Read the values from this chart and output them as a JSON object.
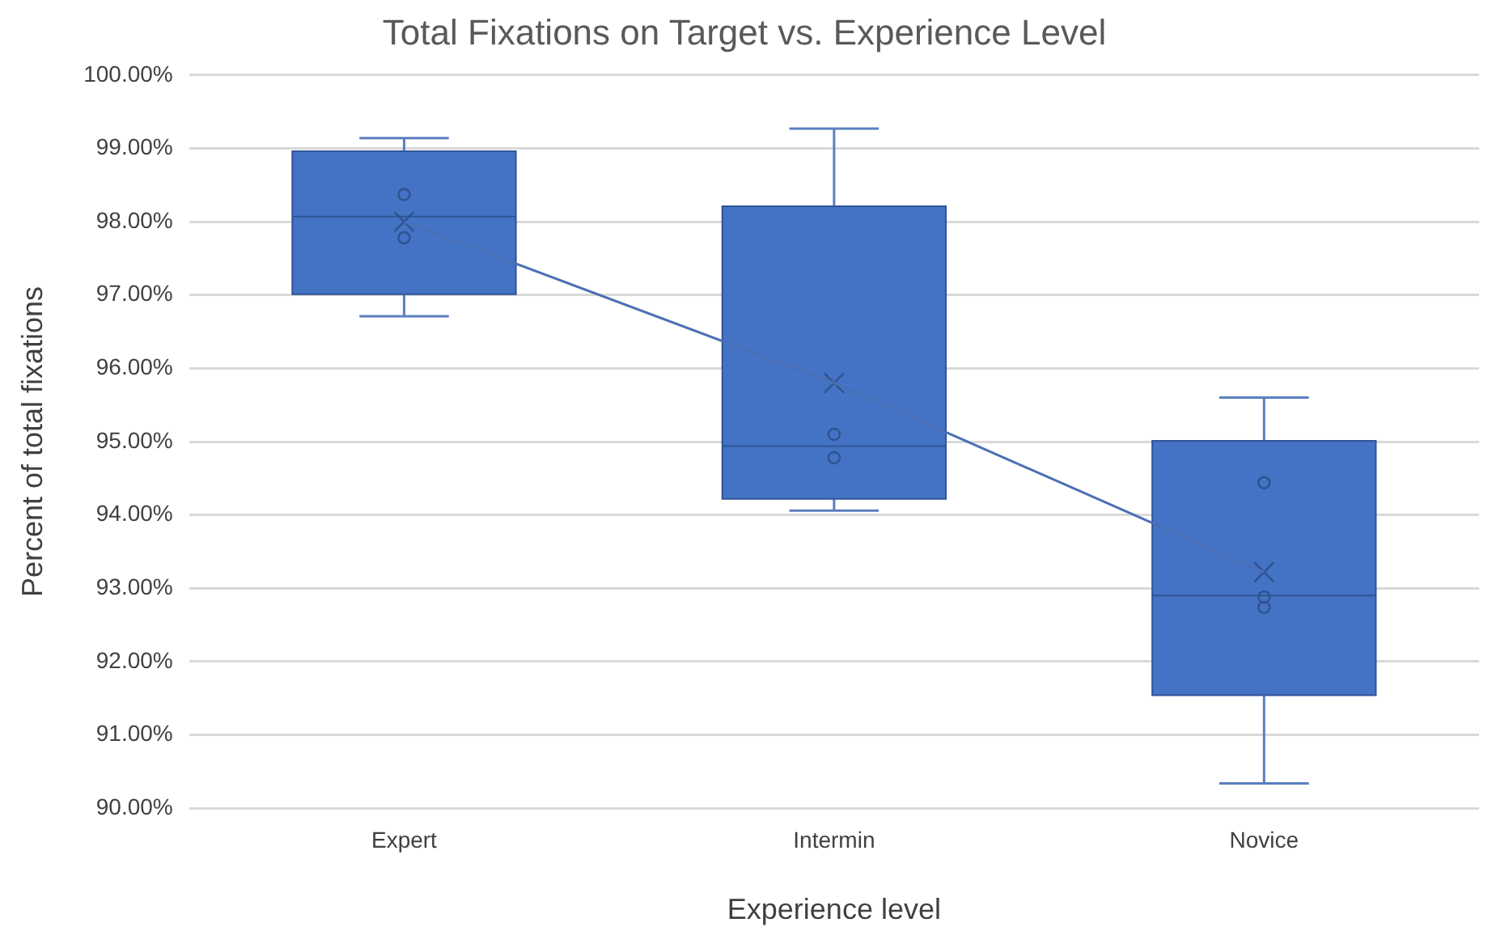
{
  "chart_data": {
    "type": "box",
    "title": "Total Fixations on Target vs. Experience Level",
    "xlabel": "Experience level",
    "ylabel": "Percent of total fixations",
    "categories": [
      "Expert",
      "Intermin",
      "Novice"
    ],
    "color": "#4472c4",
    "boxes": [
      {
        "low": 96.71,
        "q1": 97.01,
        "median": 98.07,
        "q3": 98.96,
        "high": 99.14,
        "mean": 98.0
      },
      {
        "low": 94.06,
        "q1": 94.22,
        "median": 94.94,
        "q3": 98.21,
        "high": 99.27,
        "mean": 95.8
      },
      {
        "low": 90.34,
        "q1": 91.54,
        "median": 92.9,
        "q3": 95.01,
        "high": 95.6,
        "mean": 93.22
      }
    ],
    "series": [
      {
        "type": "line",
        "color": "#4a6fb5",
        "values": [
          98.0,
          95.8,
          93.22
        ],
        "marker": "none"
      },
      {
        "type": "scatter",
        "color": "#2f528f",
        "marker": "circle",
        "x": [
          "Expert",
          "Expert",
          "Intermin",
          "Intermin",
          "Novice",
          "Novice",
          "Novice"
        ],
        "values": [
          98.37,
          97.78,
          95.1,
          94.78,
          94.44,
          92.88,
          92.74
        ]
      }
    ],
    "ylim": [
      90,
      100
    ],
    "yticks": [
      {
        "value": 90,
        "label": "90.00%"
      },
      {
        "value": 91,
        "label": "91.00%"
      },
      {
        "value": 92,
        "label": "92.00%"
      },
      {
        "value": 93,
        "label": "93.00%"
      },
      {
        "value": 94,
        "label": "94.00%"
      },
      {
        "value": 95,
        "label": "95.00%"
      },
      {
        "value": 96,
        "label": "96.00%"
      },
      {
        "value": 97,
        "label": "97.00%"
      },
      {
        "value": 98,
        "label": "98.00%"
      },
      {
        "value": 99,
        "label": "99.00%"
      },
      {
        "value": 100,
        "label": "100.00%"
      }
    ],
    "grid": "y",
    "legend": false
  }
}
